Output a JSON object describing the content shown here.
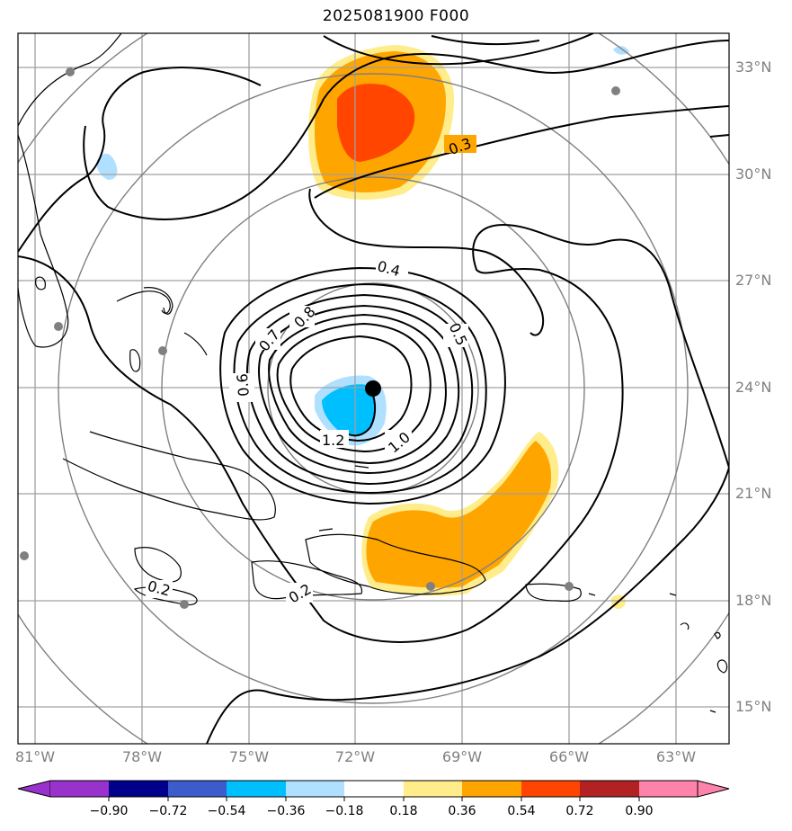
{
  "title": "2025081900 F000",
  "lat_labels": [
    {
      "text": "33°N",
      "lat": 33
    },
    {
      "text": "30°N",
      "lat": 30
    },
    {
      "text": "27°N",
      "lat": 27
    },
    {
      "text": "24°N",
      "lat": 24
    },
    {
      "text": "21°N",
      "lat": 21
    },
    {
      "text": "18°N",
      "lat": 18
    },
    {
      "text": "15°N",
      "lat": 15
    }
  ],
  "lon_labels": [
    {
      "text": "81°W",
      "lon": -81
    },
    {
      "text": "78°W",
      "lon": -78
    },
    {
      "text": "75°W",
      "lon": -75
    },
    {
      "text": "72°W",
      "lon": -72
    },
    {
      "text": "69°W",
      "lon": -69
    },
    {
      "text": "66°W",
      "lon": -66
    },
    {
      "text": "63°W",
      "lon": -63
    }
  ],
  "contour_labels": [
    "0.3",
    "0.4",
    "0.5",
    "0.6",
    "0.7",
    "0.8",
    "1.0",
    "1.2",
    "0.2",
    "0.2"
  ],
  "colorbar": {
    "ticks": [
      "−0.90",
      "−0.72",
      "−0.54",
      "−0.36",
      "−0.18",
      "0.18",
      "0.36",
      "0.54",
      "0.72",
      "0.90"
    ],
    "colors": [
      "#9932cc",
      "#00008b",
      "#3c5ccc",
      "#00bfff",
      "#b0e0ff",
      "#ffffff",
      "#ffec8b",
      "#ffa500",
      "#ff4500",
      "#b22222",
      "#ff82ab"
    ]
  },
  "storm_center": {
    "lat": 24.0,
    "lon": -71.5
  }
}
